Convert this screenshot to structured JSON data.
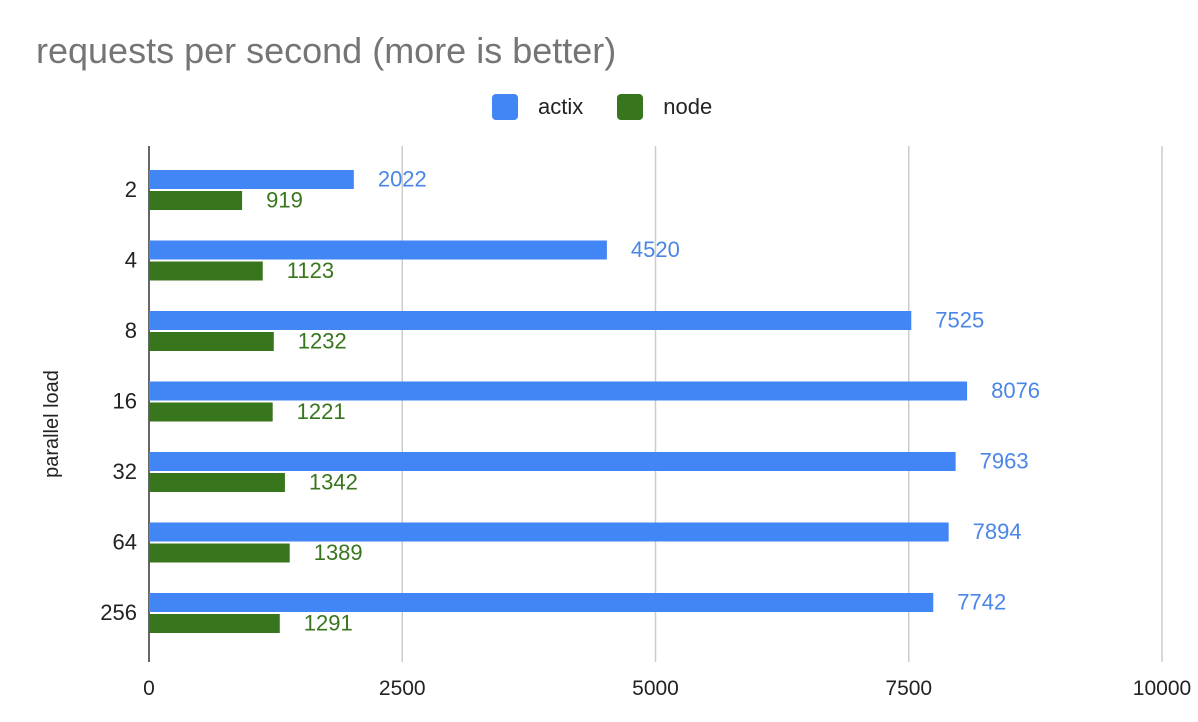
{
  "chart_data": {
    "type": "bar",
    "orientation": "horizontal",
    "title": "requests per second (more is better)",
    "ylabel": "parallel load",
    "xlabel": "",
    "categories": [
      "2",
      "4",
      "8",
      "16",
      "32",
      "64",
      "256"
    ],
    "series": [
      {
        "name": "actix",
        "color": "#4285f4",
        "label_color": "#4a86e8",
        "values": [
          2022,
          4520,
          7525,
          8076,
          7963,
          7894,
          7742
        ]
      },
      {
        "name": "node",
        "color": "#38761d",
        "label_color": "#38761d",
        "values": [
          919,
          1123,
          1232,
          1221,
          1342,
          1389,
          1291
        ]
      }
    ],
    "xlim": [
      0,
      10000
    ],
    "xticks": [
      0,
      2500,
      5000,
      7500,
      10000
    ],
    "grid": true,
    "legend_position": "top-center",
    "data_labels": true
  }
}
